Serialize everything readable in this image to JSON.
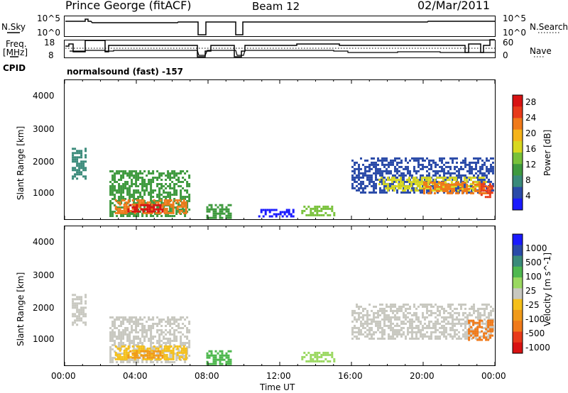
{
  "header": {
    "station": "Prince George (fitACF)",
    "beam": "Beam 12",
    "date": "02/Mar/2011"
  },
  "top_panel_labels": {
    "nsky": "N.Sky",
    "nsky_hi": "10^5",
    "nsky_lo": "10^0",
    "nsky_hi_r": "10^5",
    "nsky_lo_r": "10^0",
    "nsearch": "N.Search",
    "freq": "Freq.",
    "freq_unit": "[MHz]",
    "freq_hi": "18",
    "freq_lo": "8",
    "nave_hi": "60",
    "nave_lo": "0",
    "nave": "Nave",
    "cpid": "CPID",
    "mode": "normalsound (fast) -157"
  },
  "colors": {
    "power": [
      "#1a1aff",
      "#2a4aa8",
      "#3a8a7a",
      "#3f9a3f",
      "#78c13a",
      "#d8d820",
      "#f5b31a",
      "#f07a1a",
      "#e83a1a",
      "#d81212"
    ],
    "velocity": [
      "#1a1aff",
      "#2a4aa8",
      "#3a8a7a",
      "#4fb84f",
      "#9ad860",
      "#c8c8c0",
      "#f5c01a",
      "#f09a1a",
      "#f07a1a",
      "#e83a1a",
      "#d81212"
    ]
  },
  "chart_data": [
    {
      "type": "heatmap",
      "name": "power",
      "xlabel": "",
      "ylabel": "Slant Range [km]",
      "colorbar_label": "Power [dB]",
      "colorbar_ticks": [
        "28",
        "24",
        "20",
        "16",
        "12",
        "8",
        "4"
      ],
      "y_ticks": [
        "4000",
        "3000",
        "2000",
        "1000"
      ],
      "ylim": [
        180,
        4500
      ],
      "xlim_hours": [
        0,
        24
      ],
      "patches": [
        {
          "t0": 0.4,
          "t1": 1.2,
          "r0": 1450,
          "r1": 2400,
          "level": 2
        },
        {
          "t0": 2.5,
          "t1": 7.0,
          "r0": 300,
          "r1": 1700,
          "level": 3
        },
        {
          "t0": 2.8,
          "t1": 6.8,
          "r0": 350,
          "r1": 800,
          "level": 7
        },
        {
          "t0": 3.5,
          "t1": 5.5,
          "r0": 400,
          "r1": 650,
          "level": 9
        },
        {
          "t0": 7.9,
          "t1": 9.3,
          "r0": 250,
          "r1": 650,
          "level": 3
        },
        {
          "t0": 13.2,
          "t1": 15.0,
          "r0": 280,
          "r1": 600,
          "level": 4
        },
        {
          "t0": 10.8,
          "t1": 12.8,
          "r0": 250,
          "r1": 500,
          "level": 0
        },
        {
          "t0": 16.0,
          "t1": 23.9,
          "r0": 1000,
          "r1": 2100,
          "level": 1
        },
        {
          "t0": 17.5,
          "t1": 23.5,
          "r0": 1050,
          "r1": 1500,
          "level": 5
        },
        {
          "t0": 20.0,
          "t1": 23.8,
          "r0": 1000,
          "r1": 1350,
          "level": 7
        },
        {
          "t0": 23.2,
          "t1": 23.9,
          "r0": 900,
          "r1": 1300,
          "level": 8
        }
      ]
    },
    {
      "type": "heatmap",
      "name": "velocity",
      "xlabel": "Time UT",
      "ylabel": "Slant Range [km]",
      "colorbar_label": "Velocity [m s^-1]",
      "colorbar_ticks": [
        "1000",
        "500",
        "100",
        "25",
        "-25",
        "-100",
        "-500",
        "-1000"
      ],
      "y_ticks": [
        "4000",
        "3000",
        "2000",
        "1000"
      ],
      "x_ticks": [
        "00:00",
        "04:00",
        "08:00",
        "12:00",
        "16:00",
        "20:00",
        "00:00"
      ],
      "ylim": [
        180,
        4500
      ],
      "xlim_hours": [
        0,
        24
      ],
      "patches": [
        {
          "t0": 0.4,
          "t1": 1.2,
          "r0": 1450,
          "r1": 2400,
          "level": 5
        },
        {
          "t0": 2.5,
          "t1": 7.0,
          "r0": 300,
          "r1": 1700,
          "level": 5
        },
        {
          "t0": 2.8,
          "t1": 6.8,
          "r0": 350,
          "r1": 800,
          "level": 6
        },
        {
          "t0": 3.5,
          "t1": 5.5,
          "r0": 400,
          "r1": 650,
          "level": 7
        },
        {
          "t0": 7.9,
          "t1": 9.3,
          "r0": 250,
          "r1": 650,
          "level": 3
        },
        {
          "t0": 13.2,
          "t1": 15.0,
          "r0": 280,
          "r1": 600,
          "level": 4
        },
        {
          "t0": 16.0,
          "t1": 23.9,
          "r0": 1000,
          "r1": 2100,
          "level": 5
        },
        {
          "t0": 22.5,
          "t1": 23.9,
          "r0": 900,
          "r1": 1600,
          "level": 8
        }
      ]
    }
  ]
}
